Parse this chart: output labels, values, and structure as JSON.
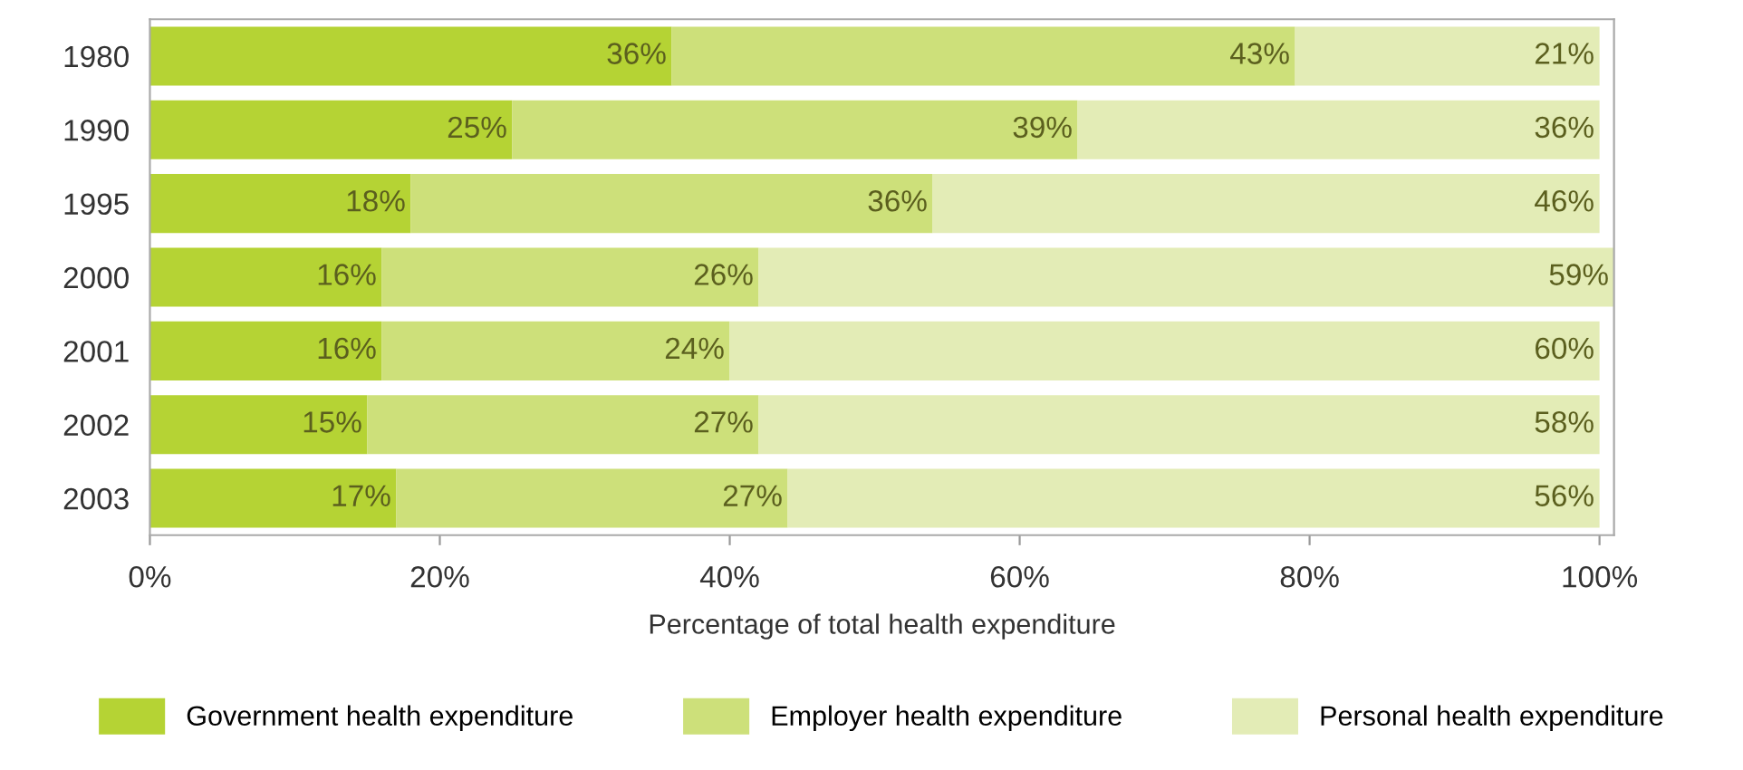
{
  "chart_data": {
    "type": "bar",
    "orientation": "horizontal",
    "stacked": true,
    "categories": [
      "1980",
      "1990",
      "1995",
      "2000",
      "2001",
      "2002",
      "2003"
    ],
    "xlabel": "Percentage of total health expenditure",
    "xlim": [
      0,
      101
    ],
    "xticks": [
      {
        "value": 0,
        "label": "0%"
      },
      {
        "value": 20,
        "label": "20%"
      },
      {
        "value": 40,
        "label": "40%"
      },
      {
        "value": 60,
        "label": "60%"
      },
      {
        "value": 80,
        "label": "80%"
      },
      {
        "value": 100,
        "label": "100%"
      }
    ],
    "grid": false,
    "legend": "bottom",
    "series": [
      {
        "name": "Government health expenditure",
        "color": "#b5d334",
        "values": [
          36,
          25,
          18,
          16,
          16,
          15,
          17
        ],
        "value_labels": [
          "36%",
          "25%",
          "18%",
          "16%",
          "16%",
          "15%",
          "17%"
        ]
      },
      {
        "name": "Employer health expenditure",
        "color": "#cde07a",
        "values": [
          43,
          39,
          36,
          26,
          24,
          27,
          27
        ],
        "value_labels": [
          "43%",
          "39%",
          "36%",
          "26%",
          "24%",
          "27%",
          "27%"
        ]
      },
      {
        "name": "Personal health expenditure",
        "color": "#e3ecb6",
        "values": [
          21,
          36,
          46,
          59,
          60,
          58,
          56
        ],
        "value_labels": [
          "21%",
          "36%",
          "46%",
          "59%",
          "60%",
          "58%",
          "56%"
        ]
      }
    ]
  }
}
